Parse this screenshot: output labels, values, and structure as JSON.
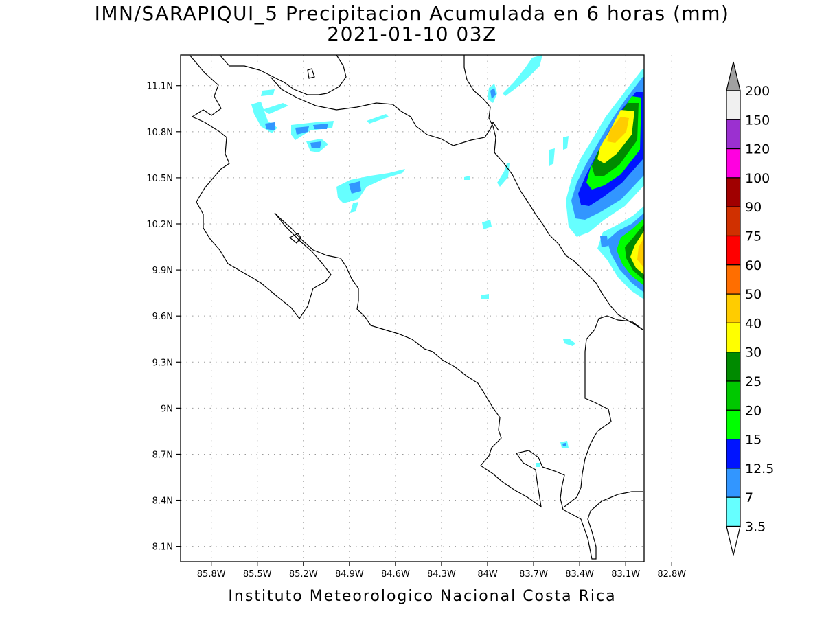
{
  "title_line1": "IMN/SARAPIQUI_5 Precipitacion Acumulada en 6 horas (mm)",
  "title_line2": "2021-01-10 03Z",
  "footer": "Instituto Meteorologico Nacional Costa Rica",
  "map": {
    "lon_range": [
      -86.0,
      -82.98
    ],
    "lat_range": [
      8.0,
      11.3
    ],
    "lon_ticks": [
      "85.8W",
      "85.5W",
      "85.2W",
      "84.9W",
      "84.6W",
      "84.3W",
      "84W",
      "83.7W",
      "83.4W",
      "83.1W",
      "82.8W"
    ],
    "lon_tick_values": [
      -85.8,
      -85.5,
      -85.2,
      -84.9,
      -84.6,
      -84.3,
      -84.0,
      -83.7,
      -83.4,
      -83.1,
      -82.8
    ],
    "lat_ticks": [
      "11.1N",
      "10.8N",
      "10.5N",
      "10.2N",
      "9.9N",
      "9.6N",
      "9.3N",
      "9N",
      "8.7N",
      "8.4N",
      "8.1N"
    ],
    "lat_tick_values": [
      11.1,
      10.8,
      10.5,
      10.2,
      9.9,
      9.6,
      9.3,
      9.0,
      8.7,
      8.4,
      8.1
    ],
    "grid": "dotted"
  },
  "colorbar": {
    "levels": [
      "200",
      "150",
      "120",
      "100",
      "90",
      "75",
      "60",
      "50",
      "40",
      "30",
      "25",
      "20",
      "15",
      "12.5",
      "7",
      "3.5"
    ],
    "colors": [
      "#a0a0a0",
      "#f0f0f0",
      "#9b30d0",
      "#ff00e0",
      "#a00000",
      "#d03000",
      "#ff0000",
      "#ff6e00",
      "#ffcc00",
      "#ffff00",
      "#008a00",
      "#00c800",
      "#00ff00",
      "#0014ff",
      "#3296ff",
      "#66ffff",
      "#ffffff"
    ]
  }
}
